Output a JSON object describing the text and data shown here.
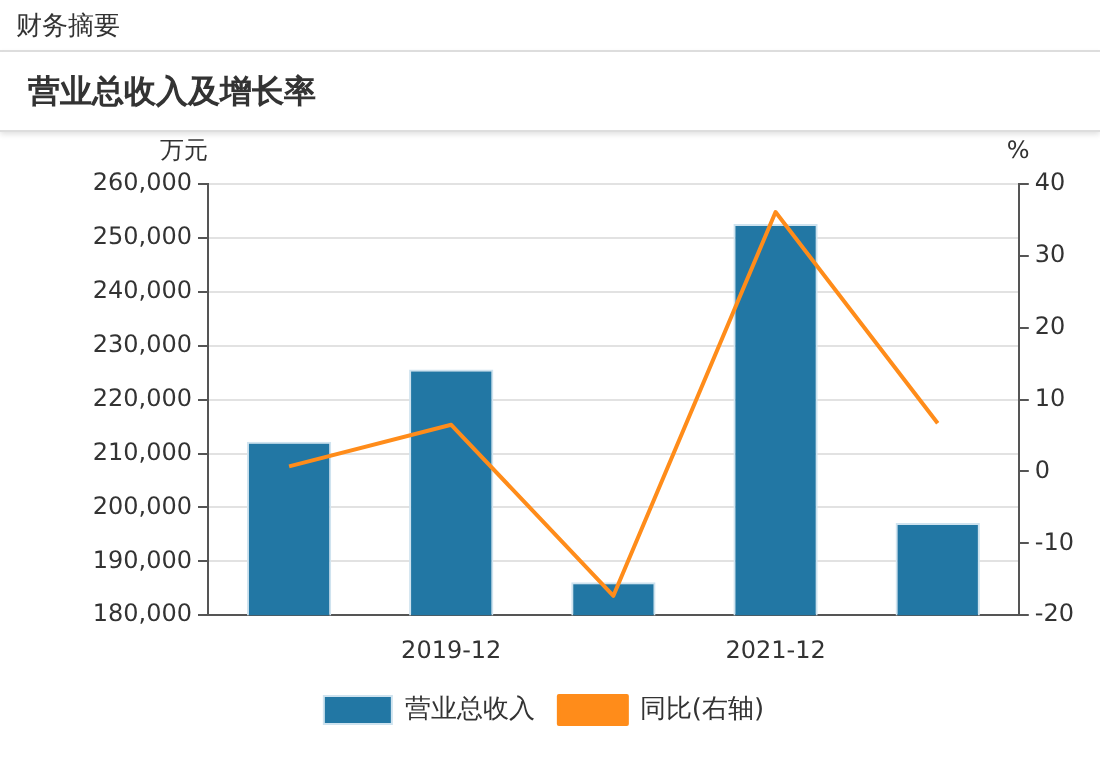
{
  "chart_data": {
    "type": "bar",
    "title": "营业总收入及增长率",
    "annotations": [
      "财务摘要"
    ],
    "categories": [
      null,
      "2019-12",
      null,
      "2021-12",
      null
    ],
    "series": [
      {
        "name": "营业总收入",
        "color": "#2277a4",
        "values": [
          212200,
          225600,
          186100,
          252600,
          197100
        ]
      },
      {
        "name": "同比(右轴)",
        "type": "line",
        "color": "#ff8c1a",
        "axis": "y2",
        "values": [
          0.7,
          6.5,
          -17.3,
          36.1,
          6.7
        ]
      }
    ],
    "ylabel": "万元",
    "y2label": "%",
    "ylim": [
      180000,
      260000
    ],
    "yticks": [
      {
        "value": 180000,
        "label": "180,000"
      },
      {
        "value": 190000,
        "label": "190,000"
      },
      {
        "value": 200000,
        "label": "200,000"
      },
      {
        "value": 210000,
        "label": "210,000"
      },
      {
        "value": 220000,
        "label": "220,000"
      },
      {
        "value": 230000,
        "label": "230,000"
      },
      {
        "value": 240000,
        "label": "240,000"
      },
      {
        "value": 250000,
        "label": "250,000"
      },
      {
        "value": 260000,
        "label": "260,000"
      }
    ],
    "y2lim": [
      -20,
      40
    ],
    "y2ticks": [
      -20,
      -10,
      0,
      10,
      20,
      30,
      40
    ],
    "grid": "y",
    "legend": "bottom",
    "marker": "none"
  }
}
